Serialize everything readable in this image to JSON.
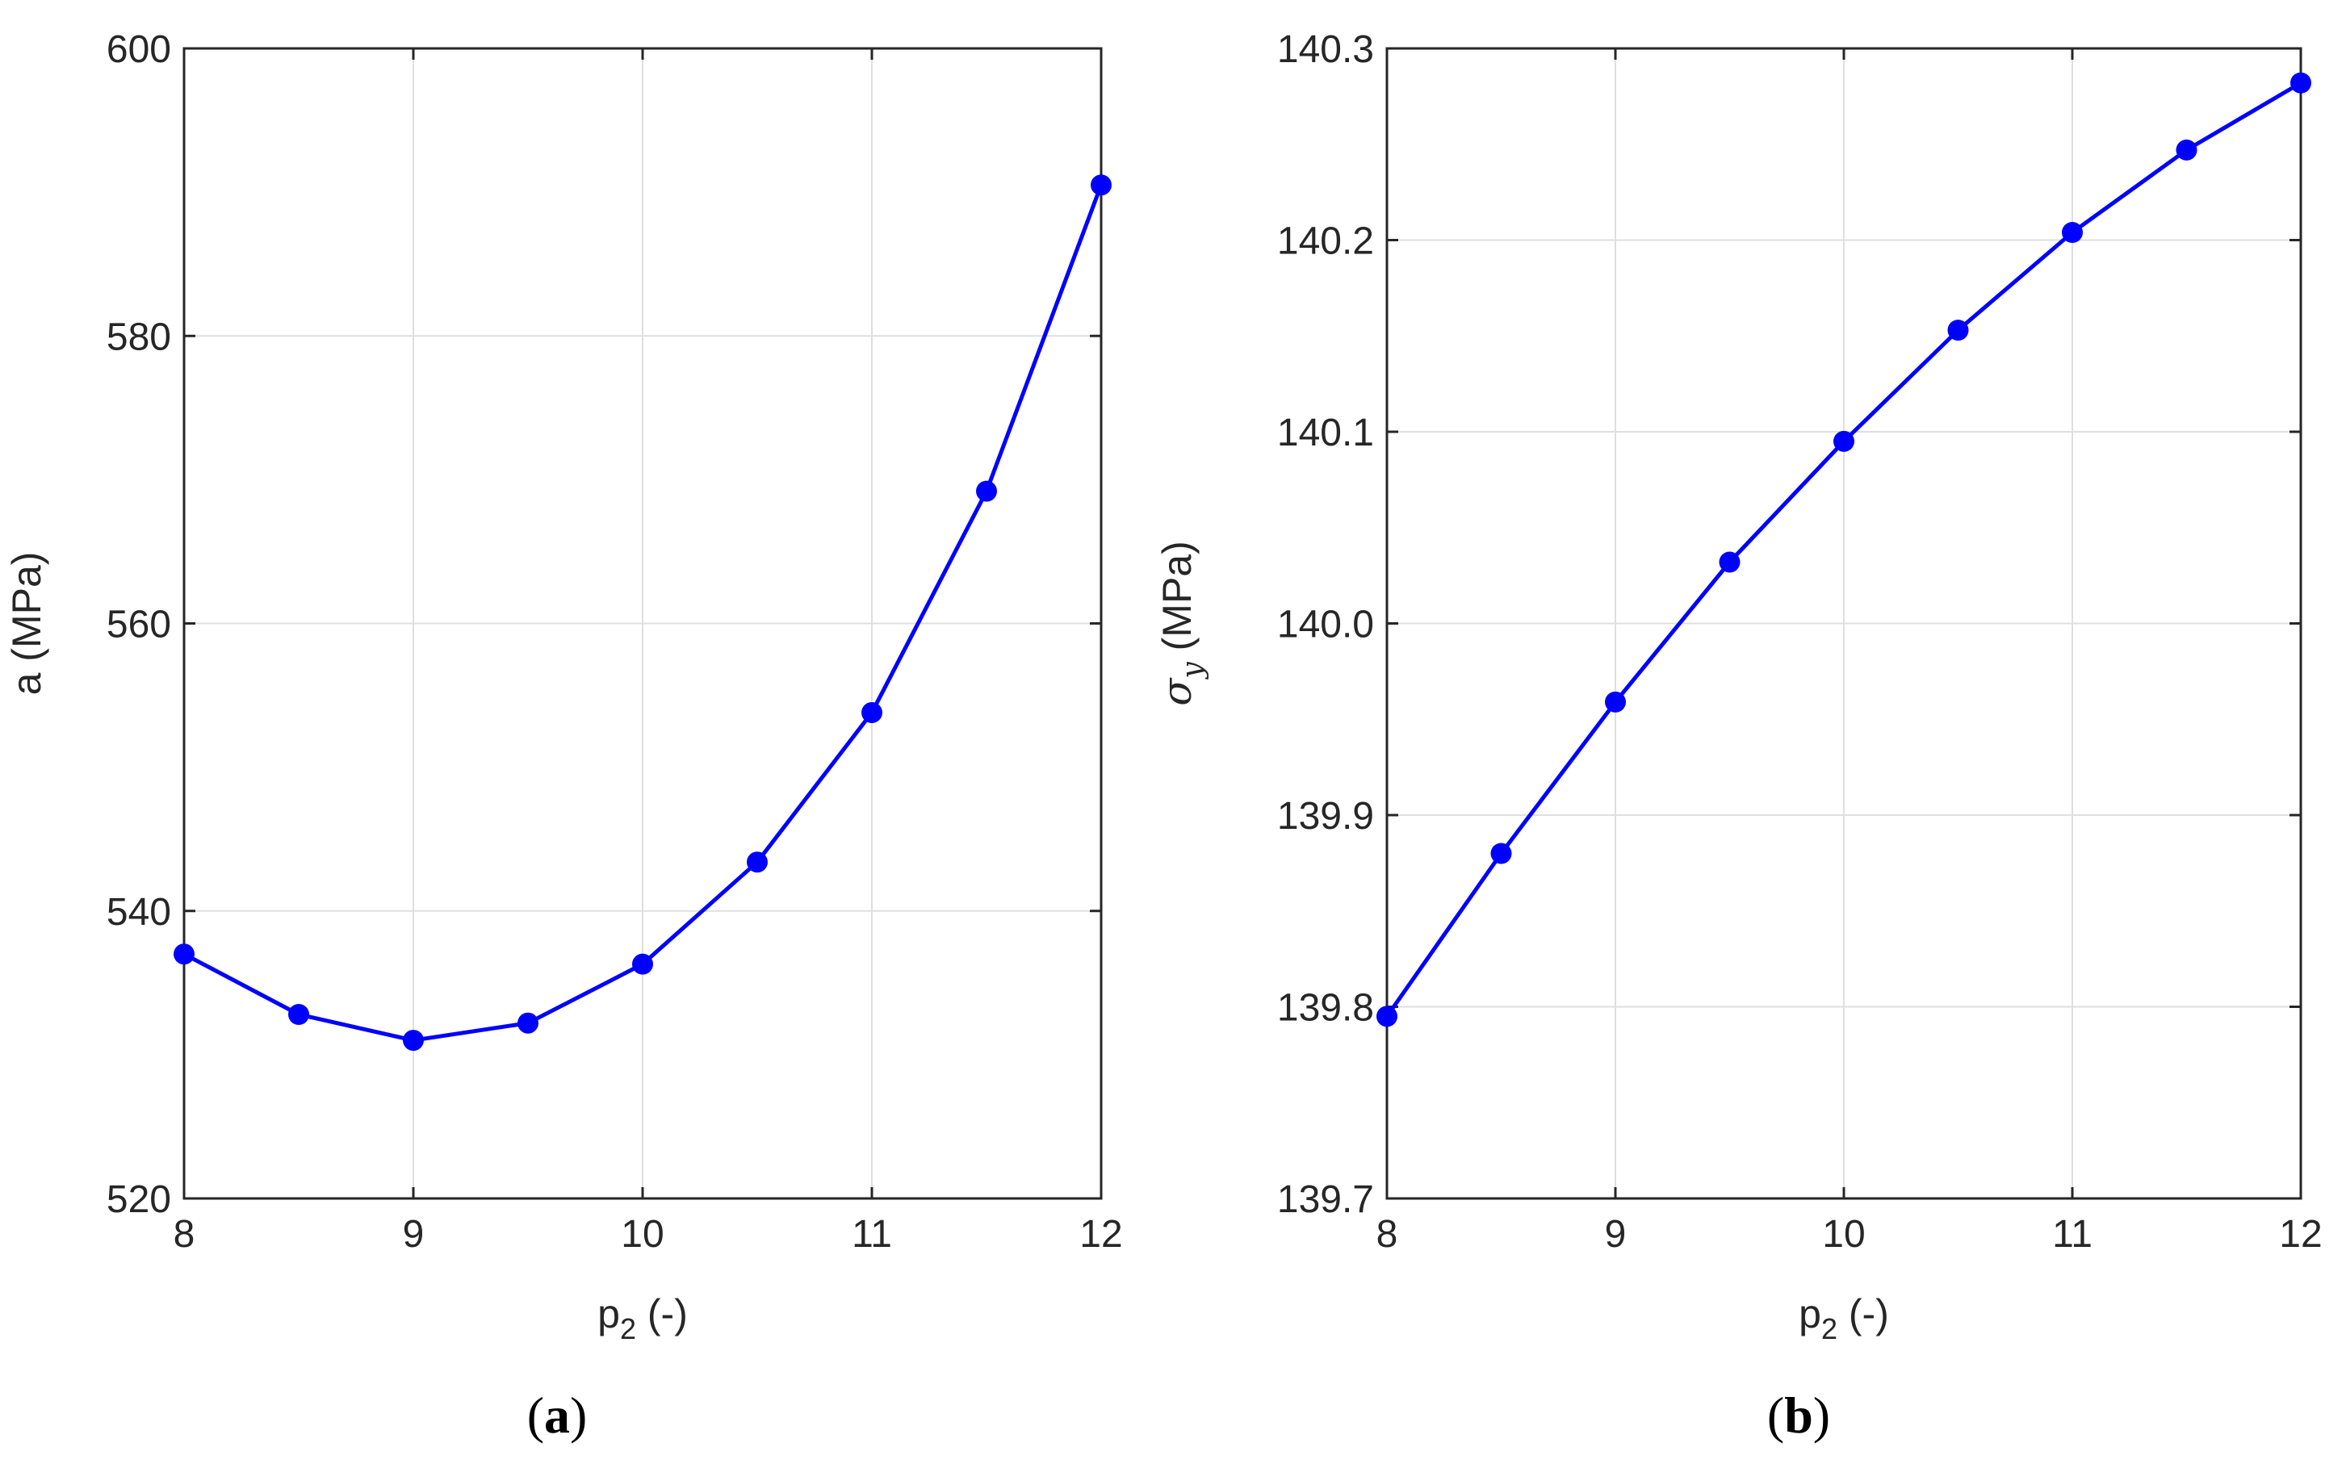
{
  "chart_data": [
    {
      "type": "line",
      "panel_label": {
        "open": "(",
        "letter": "a",
        "close": ")"
      },
      "xlabel": {
        "main": "p",
        "sub": "2",
        "rest": " (-)"
      },
      "ylabel": {
        "main": "a (MPa)"
      },
      "xlim": [
        8,
        12
      ],
      "ylim": [
        520,
        600
      ],
      "xticks": [
        8,
        9,
        10,
        11,
        12
      ],
      "yticks": [
        520,
        540,
        560,
        580,
        600
      ],
      "ytick_decimals": 0,
      "grid": true,
      "color": "#0000ff",
      "x": [
        8,
        8.5,
        9,
        9.5,
        10,
        10.5,
        11,
        11.5,
        12
      ],
      "y": [
        537.0,
        532.8,
        531.0,
        532.2,
        536.3,
        543.4,
        553.8,
        569.2,
        590.5
      ]
    },
    {
      "type": "line",
      "panel_label": {
        "open": "(",
        "letter": "b",
        "close": ")"
      },
      "xlabel": {
        "main": "p",
        "sub": "2",
        "rest": " (-)"
      },
      "ylabel": {
        "greek": "σ",
        "sub": "y",
        "rest": " (MPa)"
      },
      "xlim": [
        8,
        12
      ],
      "ylim": [
        139.7,
        140.3
      ],
      "xticks": [
        8,
        9,
        10,
        11,
        12
      ],
      "yticks": [
        139.7,
        139.8,
        139.9,
        140,
        140.1,
        140.2,
        140.3
      ],
      "ytick_decimals": 1,
      "grid": true,
      "color": "#0000ff",
      "x": [
        8,
        8.5,
        9,
        9.5,
        10,
        10.5,
        11,
        11.5,
        12
      ],
      "y": [
        139.795,
        139.88,
        139.959,
        140.032,
        140.095,
        140.153,
        140.204,
        140.247,
        140.282
      ]
    }
  ]
}
